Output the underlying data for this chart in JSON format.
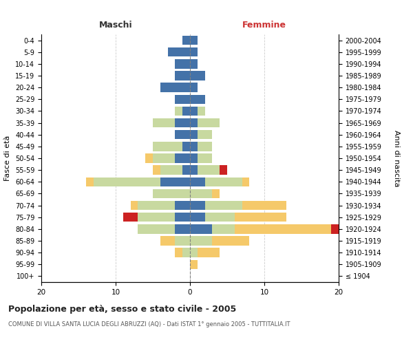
{
  "age_groups": [
    "100+",
    "95-99",
    "90-94",
    "85-89",
    "80-84",
    "75-79",
    "70-74",
    "65-69",
    "60-64",
    "55-59",
    "50-54",
    "45-49",
    "40-44",
    "35-39",
    "30-34",
    "25-29",
    "20-24",
    "15-19",
    "10-14",
    "5-9",
    "0-4"
  ],
  "birth_years": [
    "≤ 1904",
    "1905-1909",
    "1910-1914",
    "1915-1919",
    "1920-1924",
    "1925-1929",
    "1930-1934",
    "1935-1939",
    "1940-1944",
    "1945-1949",
    "1950-1954",
    "1955-1959",
    "1960-1964",
    "1965-1969",
    "1970-1974",
    "1975-1979",
    "1980-1984",
    "1985-1989",
    "1990-1994",
    "1995-1999",
    "2000-2004"
  ],
  "maschi": {
    "celibi": [
      0,
      0,
      0,
      0,
      2,
      2,
      2,
      0,
      4,
      1,
      2,
      1,
      2,
      2,
      1,
      2,
      4,
      2,
      2,
      3,
      1
    ],
    "coniugati": [
      0,
      0,
      1,
      2,
      5,
      5,
      5,
      5,
      9,
      3,
      3,
      4,
      0,
      3,
      1,
      0,
      0,
      0,
      0,
      0,
      0
    ],
    "vedovi": [
      0,
      0,
      1,
      2,
      0,
      0,
      1,
      0,
      1,
      1,
      1,
      0,
      0,
      0,
      0,
      0,
      0,
      0,
      0,
      0,
      0
    ],
    "divorziati": [
      0,
      0,
      0,
      0,
      0,
      2,
      0,
      0,
      0,
      0,
      0,
      0,
      0,
      0,
      0,
      0,
      0,
      0,
      0,
      0,
      0
    ]
  },
  "femmine": {
    "nubili": [
      0,
      0,
      0,
      0,
      3,
      2,
      2,
      0,
      2,
      1,
      1,
      1,
      1,
      1,
      1,
      2,
      1,
      2,
      1,
      1,
      1
    ],
    "coniugate": [
      0,
      0,
      1,
      3,
      3,
      4,
      5,
      3,
      5,
      3,
      2,
      2,
      2,
      3,
      1,
      0,
      0,
      0,
      0,
      0,
      0
    ],
    "vedove": [
      0,
      1,
      3,
      5,
      13,
      7,
      6,
      1,
      1,
      0,
      0,
      0,
      0,
      0,
      0,
      0,
      0,
      0,
      0,
      0,
      0
    ],
    "divorziate": [
      0,
      0,
      0,
      0,
      1,
      0,
      0,
      0,
      0,
      1,
      0,
      0,
      0,
      0,
      0,
      0,
      0,
      0,
      0,
      0,
      0
    ]
  },
  "colors": {
    "celibi_nubili": "#4472a8",
    "coniugati": "#c8d9a0",
    "vedovi": "#f5c96a",
    "divorziati": "#cc2222"
  },
  "title": "Popolazione per età, sesso e stato civile - 2005",
  "subtitle": "COMUNE DI VILLA SANTA LUCIA DEGLI ABRUZZI (AQ) - Dati ISTAT 1° gennaio 2005 - TUTTITALIA.IT",
  "xlabel_left": "Maschi",
  "xlabel_right": "Femmine",
  "ylabel_left": "Fasce di età",
  "ylabel_right": "Anni di nascita",
  "xlim": 20,
  "background_color": "#ffffff",
  "grid_color": "#cccccc"
}
